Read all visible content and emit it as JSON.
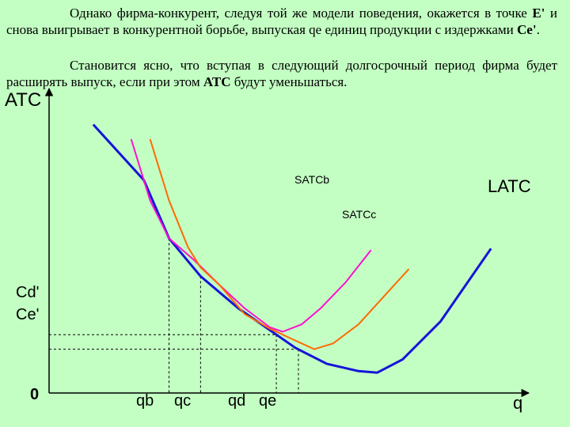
{
  "text": {
    "p1_part1": "Однако фирма-конкурент, следуя той же модели поведения, окажется в точке ",
    "p1_point": "E'",
    "p1_part2": " и снова выигрывает в конкурентной борьбе, выпуская qe единиц продукции с издержками ",
    "p1_cost": "Ce'",
    "p1_end": ".",
    "p2_part1": "Становится ясно, что вступая в следующий долгосрочный период фирма будет расширять выпуск, если при этом ",
    "p2_atc": "ATC",
    "p2_part2": " будут уменьшаться."
  },
  "chart_data": {
    "type": "line",
    "ylabel": "ATC",
    "xlabel": "q",
    "origin_label": "0",
    "x_ticks": [
      "qb",
      "qc",
      "qd",
      "qe"
    ],
    "y_ticks": [
      "Cd'",
      "Ce'"
    ],
    "series": [
      {
        "name": "LATC",
        "color": "#1414d8",
        "points": [
          [
            -5,
            9.2
          ],
          [
            3,
            7.3
          ],
          [
            7,
            5.3
          ],
          [
            12,
            4.0
          ],
          [
            18,
            2.9
          ],
          [
            24,
            2.0
          ],
          [
            27,
            1.55
          ],
          [
            32,
            1.0
          ],
          [
            37,
            0.75
          ],
          [
            40,
            0.7
          ],
          [
            44,
            1.15
          ],
          [
            50,
            2.45
          ],
          [
            58,
            4.95
          ]
        ]
      },
      {
        "name": "SATCb",
        "color": "#ff10d0",
        "points": [
          [
            1,
            8.7
          ],
          [
            4,
            6.6
          ],
          [
            7,
            5.3
          ],
          [
            11,
            4.55
          ],
          [
            15,
            3.7
          ],
          [
            19,
            2.9
          ],
          [
            23,
            2.25
          ],
          [
            25,
            2.1
          ],
          [
            28,
            2.35
          ],
          [
            31,
            2.9
          ],
          [
            35,
            3.8
          ],
          [
            39,
            4.9
          ]
        ]
      },
      {
        "name": "SATCc",
        "color": "#ff6a00",
        "points": [
          [
            4,
            8.7
          ],
          [
            7,
            6.6
          ],
          [
            10,
            5.0
          ],
          [
            12,
            4.3
          ],
          [
            15,
            3.7
          ],
          [
            19,
            2.7
          ],
          [
            23,
            2.2
          ],
          [
            27,
            1.8
          ],
          [
            30,
            1.5
          ],
          [
            33,
            1.7
          ],
          [
            37,
            2.35
          ],
          [
            41,
            3.3
          ],
          [
            45,
            4.25
          ]
        ]
      }
    ],
    "guides": [
      {
        "x_label": "qb",
        "x": 7,
        "y": 5.3
      },
      {
        "x_label": "qc",
        "x": 12,
        "y": 4.0
      },
      {
        "x_label": "qd",
        "x": 24,
        "y": 2.0
      },
      {
        "x_label": "qe",
        "x": 27.5,
        "y": 1.5
      }
    ],
    "xlim": [
      -12,
      64
    ],
    "ylim": [
      0,
      10
    ],
    "grid": false,
    "legend": "inline labels"
  }
}
